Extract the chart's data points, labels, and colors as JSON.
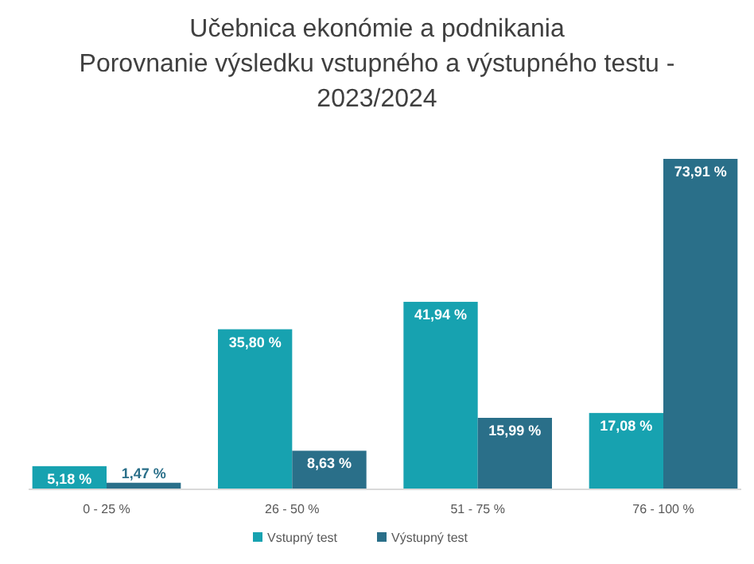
{
  "chart_data": {
    "type": "bar",
    "title": "Učebnica ekonómie a podnikania\nPorovnanie výsledku vstupného a výstupného testu -\n2023/2024",
    "categories": [
      "0 - 25 %",
      "26 - 50 %",
      "51 - 75 %",
      "76 - 100 %"
    ],
    "series": [
      {
        "name": "Vstupný test",
        "color": "#17a2b0",
        "values": [
          5.18,
          35.8,
          41.94,
          17.08
        ],
        "value_labels": [
          "5,18 %",
          "35,80 %",
          "41,94 %",
          "17,08 %"
        ]
      },
      {
        "name": "Výstupný test",
        "color": "#2a6f89",
        "values": [
          1.47,
          8.63,
          15.99,
          73.91
        ],
        "value_labels": [
          "1,47 %",
          "8,63 %",
          "15,99 %",
          "73,91 %"
        ]
      }
    ],
    "legend": "bottom"
  }
}
